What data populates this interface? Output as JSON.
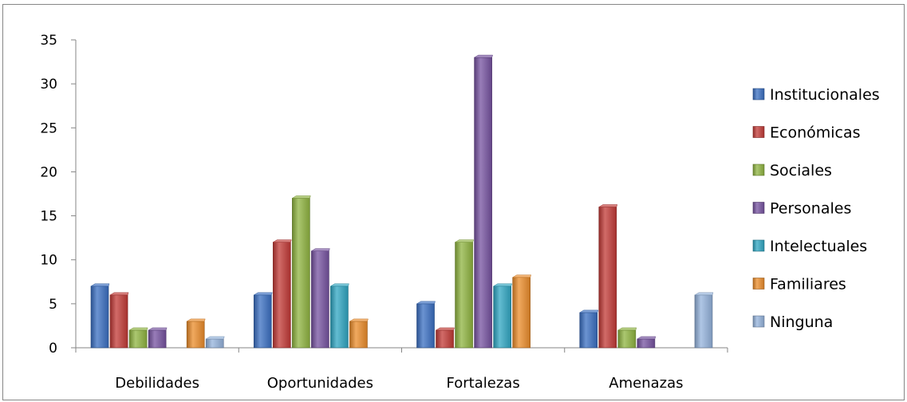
{
  "chart_data": {
    "type": "bar",
    "categories": [
      "Debilidades",
      "Oportunidades",
      "Fortalezas",
      "Amenazas"
    ],
    "ylim": [
      0,
      35
    ],
    "yticks": [
      0,
      5,
      10,
      15,
      20,
      25,
      30,
      35
    ],
    "grid": false,
    "legend_position": "right",
    "series": [
      {
        "name": "Institucionales",
        "color": "#3a6fc2",
        "values": [
          7,
          6,
          5,
          4
        ]
      },
      {
        "name": "Económicas",
        "color": "#c23a36",
        "values": [
          6,
          12,
          2,
          16
        ]
      },
      {
        "name": "Sociales",
        "color": "#8fb440",
        "values": [
          2,
          17,
          12,
          2
        ]
      },
      {
        "name": "Personales",
        "color": "#7652a0",
        "values": [
          2,
          11,
          33,
          1
        ]
      },
      {
        "name": "Intelectuales",
        "color": "#2fa6c2",
        "values": [
          0,
          7,
          7,
          0
        ]
      },
      {
        "name": "Familiares",
        "color": "#eb8c2a",
        "values": [
          3,
          3,
          8,
          0
        ]
      },
      {
        "name": "Ninguna",
        "color": "#94b3dc",
        "values": [
          1,
          0,
          0,
          6
        ]
      }
    ]
  }
}
